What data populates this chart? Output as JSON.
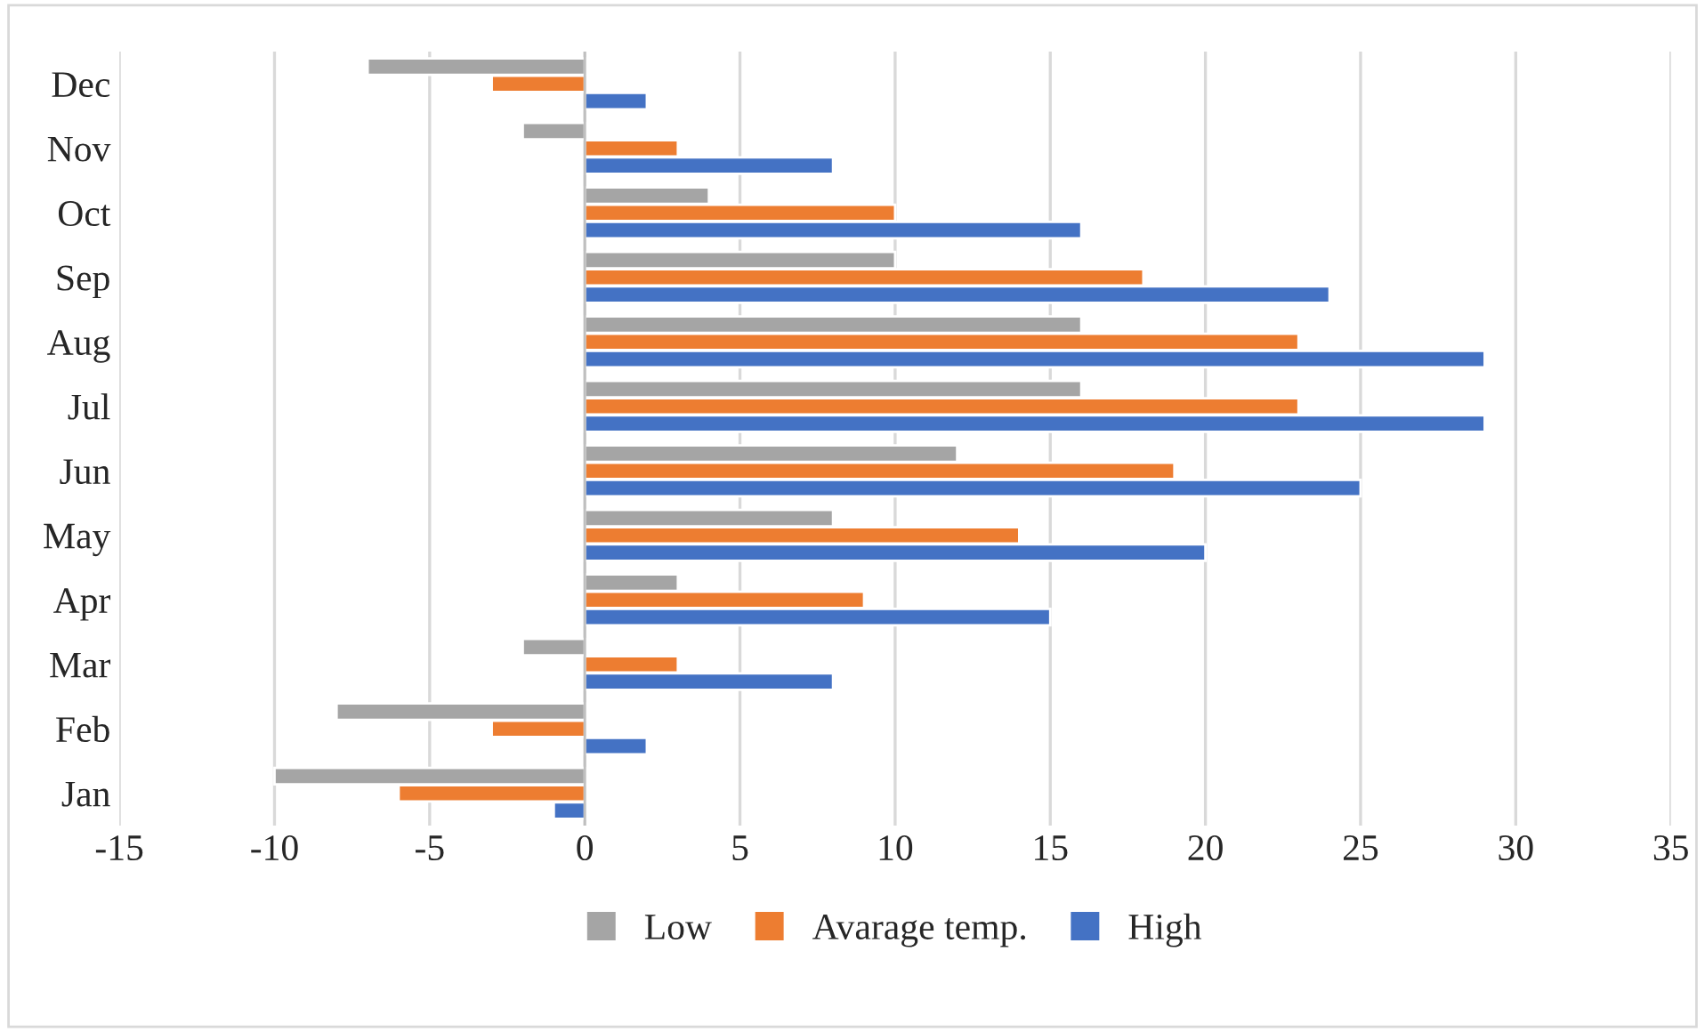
{
  "chart_data": {
    "type": "bar",
    "orientation": "horizontal",
    "categories": [
      "Dec",
      "Nov",
      "Oct",
      "Sep",
      "Aug",
      "Jul",
      "Jun",
      "May",
      "Apr",
      "Mar",
      "Feb",
      "Jan"
    ],
    "series": [
      {
        "name": "Low",
        "color": "#a5a5a5",
        "values": [
          -7,
          -2,
          4,
          10,
          16,
          16,
          12,
          8,
          3,
          -2,
          -8,
          -10
        ]
      },
      {
        "name": "Avarage temp.",
        "color": "#ed7d31",
        "values": [
          -3,
          3,
          10,
          18,
          23,
          23,
          19,
          14,
          9,
          3,
          -3,
          -6
        ]
      },
      {
        "name": "High",
        "color": "#4472c4",
        "values": [
          2,
          8,
          16,
          24,
          29,
          29,
          25,
          20,
          15,
          8,
          2,
          -1
        ]
      }
    ],
    "xlim": [
      -15,
      35
    ],
    "xticks": [
      -15,
      -10,
      -5,
      0,
      5,
      10,
      15,
      20,
      25,
      30,
      35
    ],
    "grid": "x",
    "legend": "bottom"
  }
}
